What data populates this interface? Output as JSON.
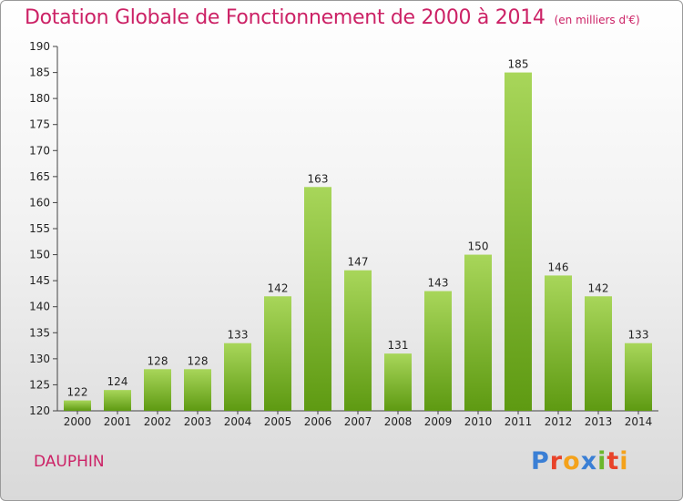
{
  "header": {
    "title": "Dotation Globale de Fonctionnement de 2000 à 2014",
    "subtitle": "(en milliers d'€)"
  },
  "footer": {
    "entity": "DAUPHIN",
    "logo_letters": [
      "P",
      "r",
      "o",
      "x",
      "i",
      "t",
      "i"
    ],
    "logo_colors": [
      "#3a7fd5",
      "#e8432a",
      "#f4a21b",
      "#3a7fd5",
      "#6bb72c",
      "#e8432a",
      "#f4a21b"
    ]
  },
  "colors": {
    "bar_light": "#a8d65a",
    "bar_dark": "#5e9a12",
    "title": "#cc2266"
  },
  "chart_data": {
    "type": "bar",
    "title": "Dotation Globale de Fonctionnement de 2000 à 2014",
    "subtitle": "(en milliers d'€)",
    "categories": [
      "2000",
      "2001",
      "2002",
      "2003",
      "2004",
      "2005",
      "2006",
      "2007",
      "2008",
      "2009",
      "2010",
      "2011",
      "2012",
      "2013",
      "2014"
    ],
    "values": [
      122,
      124,
      128,
      128,
      133,
      142,
      163,
      147,
      131,
      143,
      150,
      185,
      146,
      142,
      133
    ],
    "ylim": [
      120,
      190
    ],
    "yticks": [
      120,
      125,
      130,
      135,
      140,
      145,
      150,
      155,
      160,
      165,
      170,
      175,
      180,
      185,
      190
    ],
    "grid": false,
    "legend": "none"
  }
}
